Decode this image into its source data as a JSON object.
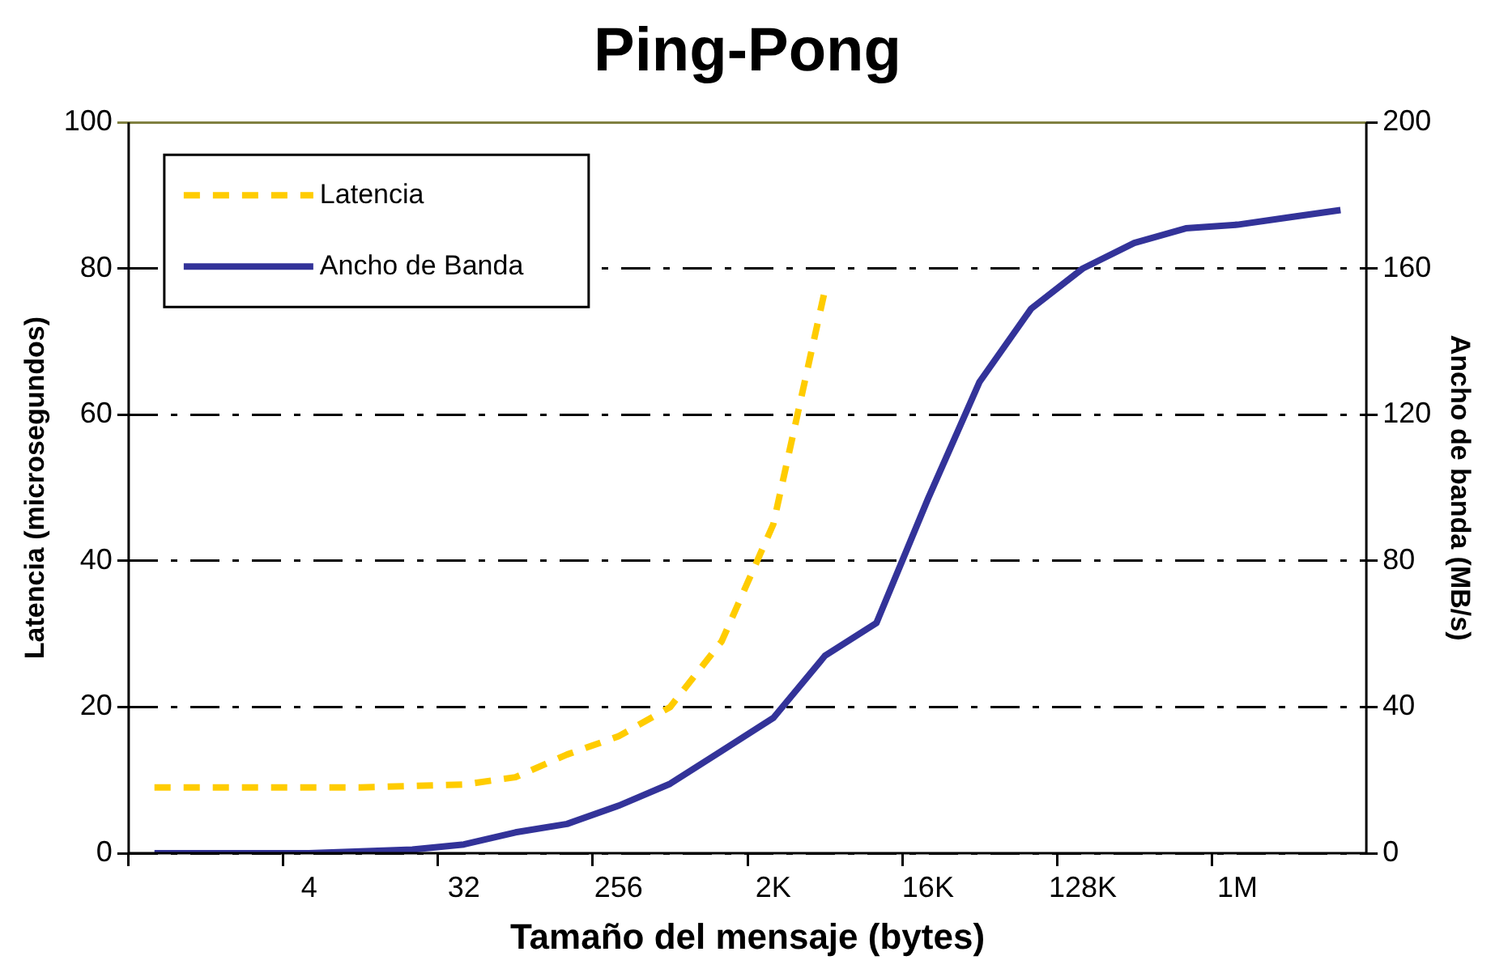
{
  "chart_data": {
    "type": "line",
    "title": "Ping-Pong",
    "xlabel": "Tamaño del mensaje (bytes)",
    "ylabel": "Latencia (microsegundos)",
    "y2label": "Ancho de banda (MB/s)",
    "categories": [
      null,
      null,
      null,
      "4",
      null,
      null,
      "32",
      null,
      null,
      "256",
      null,
      null,
      "2K",
      null,
      null,
      "16K",
      null,
      null,
      "128K",
      null,
      null,
      "1M",
      null,
      null
    ],
    "series": [
      {
        "name": "Latencia",
        "color": "#ffcc00",
        "line_style": "dashed",
        "values": [
          9,
          9,
          9,
          9,
          9,
          9.2,
          9.4,
          10.4,
          13.5,
          16,
          20,
          29,
          45,
          77,
          null,
          null,
          null,
          null,
          null,
          null,
          null,
          null,
          null,
          null
        ]
      },
      {
        "name": "Ancho de Banda",
        "color": "#333399",
        "line_style": "solid",
        "axis": "y2",
        "values": [
          0,
          0,
          0,
          0,
          0.5,
          1,
          2.4,
          5.7,
          8,
          13,
          19,
          28,
          37,
          54,
          63,
          97,
          129,
          149,
          160,
          167,
          171,
          172,
          174,
          176
        ]
      }
    ],
    "ylim": [
      0,
      100
    ],
    "yticks": [
      0,
      20,
      40,
      60,
      80,
      100
    ],
    "y2lim": [
      0,
      200
    ],
    "y2ticks": [
      0,
      40,
      80,
      120,
      160,
      200
    ],
    "grid": "y",
    "legend": "top left",
    "marker": "none"
  }
}
